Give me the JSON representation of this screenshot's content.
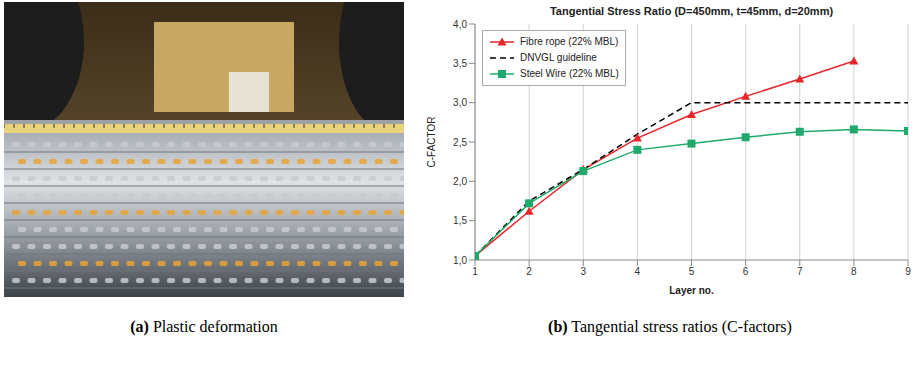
{
  "figure": {
    "captions": [
      "(a) Plastic deformation",
      "(b) Tangential stress ratios (C-factors)"
    ]
  },
  "chart_data": {
    "type": "line",
    "title": "Tangential Stress Ratio (D=450mm, t=45mm, d=20mm)",
    "x_label": "Layer no.",
    "y_label": "C-FACTOR",
    "x": [
      1,
      2,
      3,
      4,
      5,
      6,
      7,
      8,
      9
    ],
    "xlim": [
      1,
      9
    ],
    "xticks": [
      1,
      2,
      3,
      4,
      5,
      6,
      7,
      8,
      9
    ],
    "ylim": [
      1,
      4
    ],
    "yticks": [
      {
        "value": 1,
        "label": "1,0"
      },
      {
        "value": 1.5,
        "label": "1,5"
      },
      {
        "value": 2,
        "label": "2,0"
      },
      {
        "value": 2.5,
        "label": "2,5"
      },
      {
        "value": 3,
        "label": "3,0"
      },
      {
        "value": 3.5,
        "label": "3,5"
      },
      {
        "value": 4,
        "label": "4,0"
      }
    ],
    "grid": "x",
    "legend": "upper left",
    "series": [
      {
        "name": "Fibre rope (22% MBL)",
        "color": "#e8262a",
        "marker": "triangle",
        "line_style": "solid",
        "values": [
          1.05,
          1.62,
          2.15,
          2.55,
          2.85,
          3.08,
          3.3,
          3.53,
          null
        ]
      },
      {
        "name": "DNVGL guideline",
        "color": "#000000",
        "marker": "none",
        "line_style": "dashed",
        "values": [
          1.05,
          1.75,
          2.15,
          2.6,
          3.0,
          3.0,
          3.0,
          3.0,
          3.0
        ]
      },
      {
        "name": "Steel Wire (22% MBL)",
        "color": "#1faa6b",
        "marker": "square",
        "line_style": "solid",
        "values": [
          1.05,
          1.72,
          2.13,
          2.4,
          2.48,
          2.56,
          2.63,
          2.66,
          2.64
        ]
      }
    ]
  }
}
